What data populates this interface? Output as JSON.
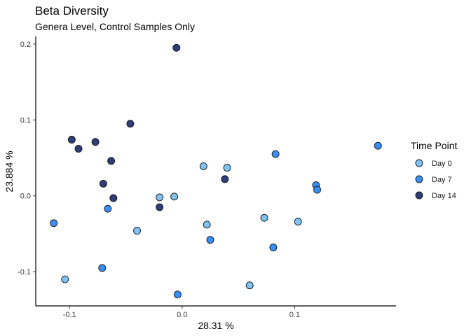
{
  "chart_data": {
    "type": "scatter",
    "title": "Beta Diversity",
    "subtitle": "Genera Level, Control Samples Only",
    "xlabel": "28.31 %",
    "ylabel": "23.884 %",
    "xlim": [
      -0.13,
      0.19
    ],
    "ylim": [
      -0.145,
      0.21
    ],
    "x_ticks": [
      -0.1,
      0.0,
      0.1
    ],
    "x_tick_labels": [
      "-0.1",
      "0.0",
      "0.1"
    ],
    "y_ticks": [
      -0.1,
      0.0,
      0.1,
      0.2
    ],
    "y_tick_labels": [
      "-0.1",
      "0.0",
      "0.1",
      "0.2"
    ],
    "grid": false,
    "legend": {
      "title": "Time Point",
      "position": "right"
    },
    "series": [
      {
        "name": "Day 0",
        "color": "#7ec3f3",
        "points": [
          [
            -0.104,
            -0.11
          ],
          [
            -0.04,
            -0.046
          ],
          [
            -0.02,
            -0.002
          ],
          [
            -0.007,
            -0.001
          ],
          [
            0.019,
            0.039
          ],
          [
            0.022,
            -0.038
          ],
          [
            0.04,
            0.037
          ],
          [
            0.06,
            -0.118
          ],
          [
            0.073,
            -0.029
          ],
          [
            0.103,
            -0.034
          ]
        ]
      },
      {
        "name": "Day 7",
        "color": "#3a8ff7",
        "points": [
          [
            -0.114,
            -0.036
          ],
          [
            -0.071,
            -0.095
          ],
          [
            -0.066,
            -0.017
          ],
          [
            -0.004,
            -0.13
          ],
          [
            0.025,
            -0.058
          ],
          [
            0.081,
            -0.068
          ],
          [
            0.083,
            0.055
          ],
          [
            0.119,
            0.014
          ],
          [
            0.12,
            0.008
          ],
          [
            0.174,
            0.066
          ]
        ]
      },
      {
        "name": "Day 14",
        "color": "#2f3d78",
        "points": [
          [
            -0.098,
            0.074
          ],
          [
            -0.092,
            0.062
          ],
          [
            -0.077,
            0.071
          ],
          [
            -0.07,
            0.016
          ],
          [
            -0.063,
            0.046
          ],
          [
            -0.061,
            -0.003
          ],
          [
            -0.046,
            0.095
          ],
          [
            -0.02,
            -0.015
          ],
          [
            -0.005,
            0.195
          ],
          [
            0.038,
            0.022
          ]
        ]
      }
    ]
  }
}
